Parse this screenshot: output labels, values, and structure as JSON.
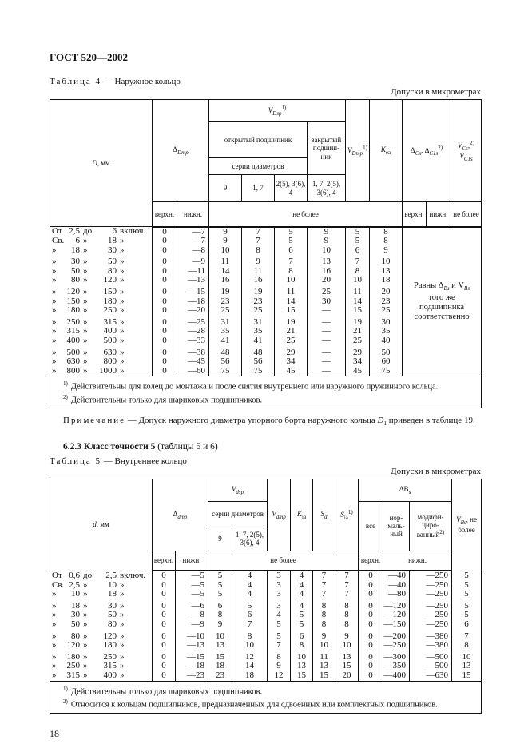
{
  "header": {
    "title": "ГОСТ 520—2002"
  },
  "table4": {
    "caption_prefix": "Таблица 4",
    "caption_title": "— Наружное кольцо",
    "units": "Допуски в микрометрах",
    "headers": {
      "D": "D",
      "D_unit": ", мм",
      "delta_Dmp": "Δ",
      "delta_Dmp_sub": "Dmp",
      "V_Dsp": "V",
      "V_Dsp_sub": "Dsp",
      "V_Dsp_sup": "1)",
      "open_bearing": "открытый подшипник",
      "closed_bearing": "закрытый подшип-ник",
      "diameter_series": "серии диаметров",
      "series": [
        "9",
        "1, 7",
        "2(5), 3(6), 4",
        "1, 7, 2(5), 3(6), 4"
      ],
      "V_Dmp": "V",
      "V_Dmp_sub": "Dmp",
      "V_Dmp_sup": "1)",
      "K_ea": "K",
      "K_ea_sub": "ea",
      "delta_Cs": "Δ",
      "delta_Cs_sub": "Cs",
      "delta_C1s": ", Δ",
      "delta_C1s_sub": "C1s",
      "delta_C_sup": "2)",
      "V_Cs": "V",
      "V_Cs_sub": "Cs",
      "V_C1s": "V",
      "V_C1s_sub": "C1s",
      "V_C_sup": "2)",
      "upper": "верхн.",
      "lower": "нижн.",
      "not_more": "не более",
      "not_more_short": "не более"
    },
    "merged_text": {
      "line1a": "Равны Δ",
      "line1a_sub": "Bs",
      "line1b": " и V",
      "line1b_sub": "Bs",
      "line2": "того же",
      "line3": "подшипника",
      "line4": "соответственно"
    },
    "rows": [
      {
        "range": [
          "От",
          "2,5",
          "до",
          "6",
          "включ."
        ],
        "values": [
          "0",
          "—7",
          "9",
          "7",
          "5",
          "9",
          "5",
          "8"
        ]
      },
      {
        "range": [
          "Св.",
          "6",
          "»",
          "18",
          "»"
        ],
        "values": [
          "0",
          "—7",
          "9",
          "7",
          "5",
          "9",
          "5",
          "8"
        ]
      },
      {
        "range": [
          "»",
          "18",
          "»",
          "30",
          "»"
        ],
        "values": [
          "0",
          "—8",
          "10",
          "8",
          "6",
          "10",
          "6",
          "9"
        ]
      },
      {
        "range": [
          "»",
          "30",
          "»",
          "50",
          "»"
        ],
        "values": [
          "0",
          "—9",
          "11",
          "9",
          "7",
          "13",
          "7",
          "10"
        ]
      },
      {
        "range": [
          "»",
          "50",
          "»",
          "80",
          "»"
        ],
        "values": [
          "0",
          "—11",
          "14",
          "11",
          "8",
          "16",
          "8",
          "13"
        ]
      },
      {
        "range": [
          "»",
          "80",
          "»",
          "120",
          "»"
        ],
        "values": [
          "0",
          "—13",
          "16",
          "16",
          "10",
          "20",
          "10",
          "18"
        ]
      },
      {
        "range": [
          "»",
          "120",
          "»",
          "150",
          "»"
        ],
        "values": [
          "0",
          "—15",
          "19",
          "19",
          "11",
          "25",
          "11",
          "20"
        ]
      },
      {
        "range": [
          "»",
          "150",
          "»",
          "180",
          "»"
        ],
        "values": [
          "0",
          "—18",
          "23",
          "23",
          "14",
          "30",
          "14",
          "23"
        ]
      },
      {
        "range": [
          "»",
          "180",
          "»",
          "250",
          "»"
        ],
        "values": [
          "0",
          "—20",
          "25",
          "25",
          "15",
          "—",
          "15",
          "25"
        ]
      },
      {
        "range": [
          "»",
          "250",
          "»",
          "315",
          "»"
        ],
        "values": [
          "0",
          "—25",
          "31",
          "31",
          "19",
          "—",
          "19",
          "30"
        ]
      },
      {
        "range": [
          "»",
          "315",
          "»",
          "400",
          "»"
        ],
        "values": [
          "0",
          "—28",
          "35",
          "35",
          "21",
          "—",
          "21",
          "35"
        ]
      },
      {
        "range": [
          "»",
          "400",
          "»",
          "500",
          "»"
        ],
        "values": [
          "0",
          "—33",
          "41",
          "41",
          "25",
          "—",
          "25",
          "40"
        ]
      },
      {
        "range": [
          "»",
          "500",
          "»",
          "630",
          "»"
        ],
        "values": [
          "0",
          "—38",
          "48",
          "48",
          "29",
          "—",
          "29",
          "50"
        ]
      },
      {
        "range": [
          "»",
          "630",
          "»",
          "800",
          "»"
        ],
        "values": [
          "0",
          "—45",
          "56",
          "56",
          "34",
          "—",
          "34",
          "60"
        ]
      },
      {
        "range": [
          "»",
          "800",
          "»",
          "1000",
          "»"
        ],
        "values": [
          "0",
          "—60",
          "75",
          "75",
          "45",
          "—",
          "45",
          "75"
        ]
      }
    ],
    "footnotes": [
      {
        "mark": "1)",
        "text": "Действительны для колец до монтажа и после снятия внутреннего или наружного пружинного кольца."
      },
      {
        "mark": "2)",
        "text": "Действительны только для шариковых подшипников."
      }
    ]
  },
  "note": {
    "label": "Примечание",
    "text": "— Допуск наружного диаметра упорного борта наружного кольца ",
    "sym": "D",
    "sym_sub": "1",
    "text2": " приведен в таблице 19."
  },
  "section": {
    "number": "6.2.3",
    "title": "Класс точности 5",
    "suffix": " (таблицы 5 и 6)"
  },
  "table5": {
    "caption_prefix": "Таблица 5",
    "caption_title": "— Внутреннее кольцо",
    "units": "Допуски в микрометрах",
    "headers": {
      "d": "d",
      "d_unit": ", мм",
      "delta_dmp": "Δ",
      "delta_dmp_sub": "dmp",
      "V_dsp": "V",
      "V_dsp_sub": "dsp",
      "diameter_series": "серии диаметров",
      "series": [
        "9",
        "1, 7, 2(5), 3(6), 4"
      ],
      "V_dmp": "V",
      "V_dmp_sub": "dmp",
      "K_ia": "K",
      "K_ia_sub": "ia",
      "S_d": "S",
      "S_d_sub": "d",
      "S_ia": "S",
      "S_ia_sub": "ia",
      "S_ia_sup": "1)",
      "delta_Bs": "ΔB",
      "delta_Bs_sub": "s",
      "all": "все",
      "normal": "нор-маль-ный",
      "modified": "модифи-циро-ванный",
      "modified_sup": "2)",
      "V_Bs": "V",
      "V_Bs_sub": "Bs",
      "V_Bs_tail": ", не более",
      "upper": "верхн.",
      "lower": "нижн.",
      "not_more": "не более",
      "lower2": "нижн."
    },
    "rows": [
      {
        "range": [
          "От",
          "0,6",
          "до",
          "2,5",
          "включ."
        ],
        "values": [
          "0",
          "—5",
          "5",
          "4",
          "3",
          "4",
          "7",
          "7",
          "0",
          "—40",
          "—250",
          "5"
        ]
      },
      {
        "range": [
          "Св.",
          "2,5",
          "»",
          "10",
          "»"
        ],
        "values": [
          "0",
          "—5",
          "5",
          "4",
          "3",
          "4",
          "7",
          "7",
          "0",
          "—40",
          "—250",
          "5"
        ]
      },
      {
        "range": [
          "»",
          "10",
          "»",
          "18",
          "»"
        ],
        "values": [
          "0",
          "—5",
          "5",
          "4",
          "3",
          "4",
          "7",
          "7",
          "0",
          "—80",
          "—250",
          "5"
        ]
      },
      {
        "range": [
          "»",
          "18",
          "»",
          "30",
          "»"
        ],
        "values": [
          "0",
          "—6",
          "6",
          "5",
          "3",
          "4",
          "8",
          "8",
          "0",
          "—120",
          "—250",
          "5"
        ]
      },
      {
        "range": [
          "»",
          "30",
          "»",
          "50",
          "»"
        ],
        "values": [
          "0",
          "—8",
          "8",
          "6",
          "4",
          "5",
          "8",
          "8",
          "0",
          "—120",
          "—250",
          "5"
        ]
      },
      {
        "range": [
          "»",
          "50",
          "»",
          "80",
          "»"
        ],
        "values": [
          "0",
          "—9",
          "9",
          "7",
          "5",
          "5",
          "8",
          "8",
          "0",
          "—150",
          "—250",
          "6"
        ]
      },
      {
        "range": [
          "»",
          "80",
          "»",
          "120",
          "»"
        ],
        "values": [
          "0",
          "—10",
          "10",
          "8",
          "5",
          "6",
          "9",
          "9",
          "0",
          "—200",
          "—380",
          "7"
        ]
      },
      {
        "range": [
          "»",
          "120",
          "»",
          "180",
          "»"
        ],
        "values": [
          "0",
          "—13",
          "13",
          "10",
          "7",
          "8",
          "10",
          "10",
          "0",
          "—250",
          "—380",
          "8"
        ]
      },
      {
        "range": [
          "»",
          "180",
          "»",
          "250",
          "»"
        ],
        "values": [
          "0",
          "—15",
          "15",
          "12",
          "8",
          "10",
          "11",
          "13",
          "0",
          "—300",
          "—500",
          "10"
        ]
      },
      {
        "range": [
          "»",
          "250",
          "»",
          "315",
          "»"
        ],
        "values": [
          "0",
          "—18",
          "18",
          "14",
          "9",
          "13",
          "13",
          "15",
          "0",
          "—350",
          "—500",
          "13"
        ]
      },
      {
        "range": [
          "»",
          "315",
          "»",
          "400",
          "»"
        ],
        "values": [
          "0",
          "—23",
          "23",
          "18",
          "12",
          "15",
          "15",
          "20",
          "0",
          "—400",
          "—630",
          "15"
        ]
      }
    ],
    "footnotes": [
      {
        "mark": "1)",
        "text": "Действительны только для шариковых подшипников."
      },
      {
        "mark": "2)",
        "text": "Относится к кольцам подшипников, предназначенных для сдвоенных или комплектных подшипников."
      }
    ]
  },
  "page": {
    "number": "18"
  }
}
